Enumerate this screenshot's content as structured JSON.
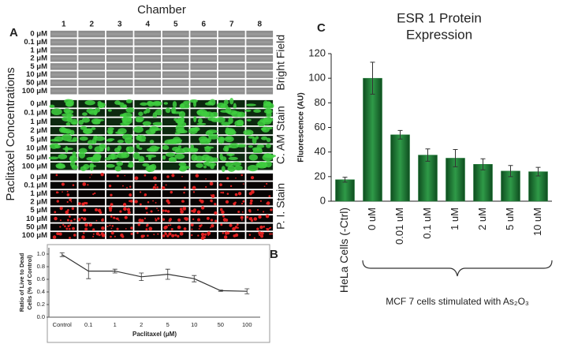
{
  "panel_a": {
    "label": "A",
    "title": "Chamber",
    "columns": [
      "1",
      "2",
      "3",
      "4",
      "5",
      "6",
      "7",
      "8"
    ],
    "rows": [
      "0 μM",
      "0.1 μM",
      "1 μM",
      "2 μM",
      "5 μM",
      "10 μM",
      "50 μM",
      "100 μM"
    ],
    "stains": [
      "Bright Field",
      "C. AM Stain",
      "P. I. Stain"
    ],
    "y_title": "Paclitaxel Concentrations"
  },
  "chart_data": [
    {
      "type": "line",
      "panel": "B",
      "ylabel": [
        "Ratio of Live to Dead",
        "Cells (% of Control)"
      ],
      "xlabel": "Paclitaxel (μM)",
      "categories": [
        "Control",
        "0.1",
        "1",
        "2",
        "5",
        "10",
        "50",
        "100"
      ],
      "values": [
        0.99,
        0.73,
        0.73,
        0.64,
        0.68,
        0.61,
        0.42,
        0.41
      ],
      "errors": [
        0.03,
        0.12,
        0.03,
        0.06,
        0.08,
        0.05,
        0.01,
        0.04
      ],
      "color": "#333333",
      "ylim": [
        0,
        1.1
      ],
      "yticks": [
        {
          "value": 0,
          "label": "0.0"
        },
        {
          "value": 0.2,
          "label": "0.2"
        },
        {
          "value": 0.4,
          "label": "0.4"
        },
        {
          "value": 0.6,
          "label": "0.6"
        },
        {
          "value": 0.8,
          "label": "0.8"
        },
        {
          "value": 1,
          "label": "1.0"
        }
      ]
    },
    {
      "type": "bar",
      "panel": "C",
      "title": [
        "ESR 1 Protein",
        "Expression"
      ],
      "ylabel": "Fluorescence (AU)",
      "categories": [
        "HeLa Cells (-Ctrl)",
        "0 uM",
        "0.01 uM",
        "0.1 uM",
        "1 uM",
        "2 uM",
        "5 uM",
        "10 uM"
      ],
      "values": [
        17.5,
        100,
        54,
        37.5,
        35,
        30,
        24.5,
        24
      ],
      "errors": [
        2,
        13,
        3.5,
        5,
        7,
        4.5,
        4.5,
        3.5
      ],
      "color": "#1d7a35",
      "ylim": [
        0,
        120
      ],
      "yticks": [
        0,
        20,
        40,
        60,
        80,
        100,
        120
      ],
      "annotation": "MCF 7 cells stimulated with As₂O₃"
    }
  ]
}
